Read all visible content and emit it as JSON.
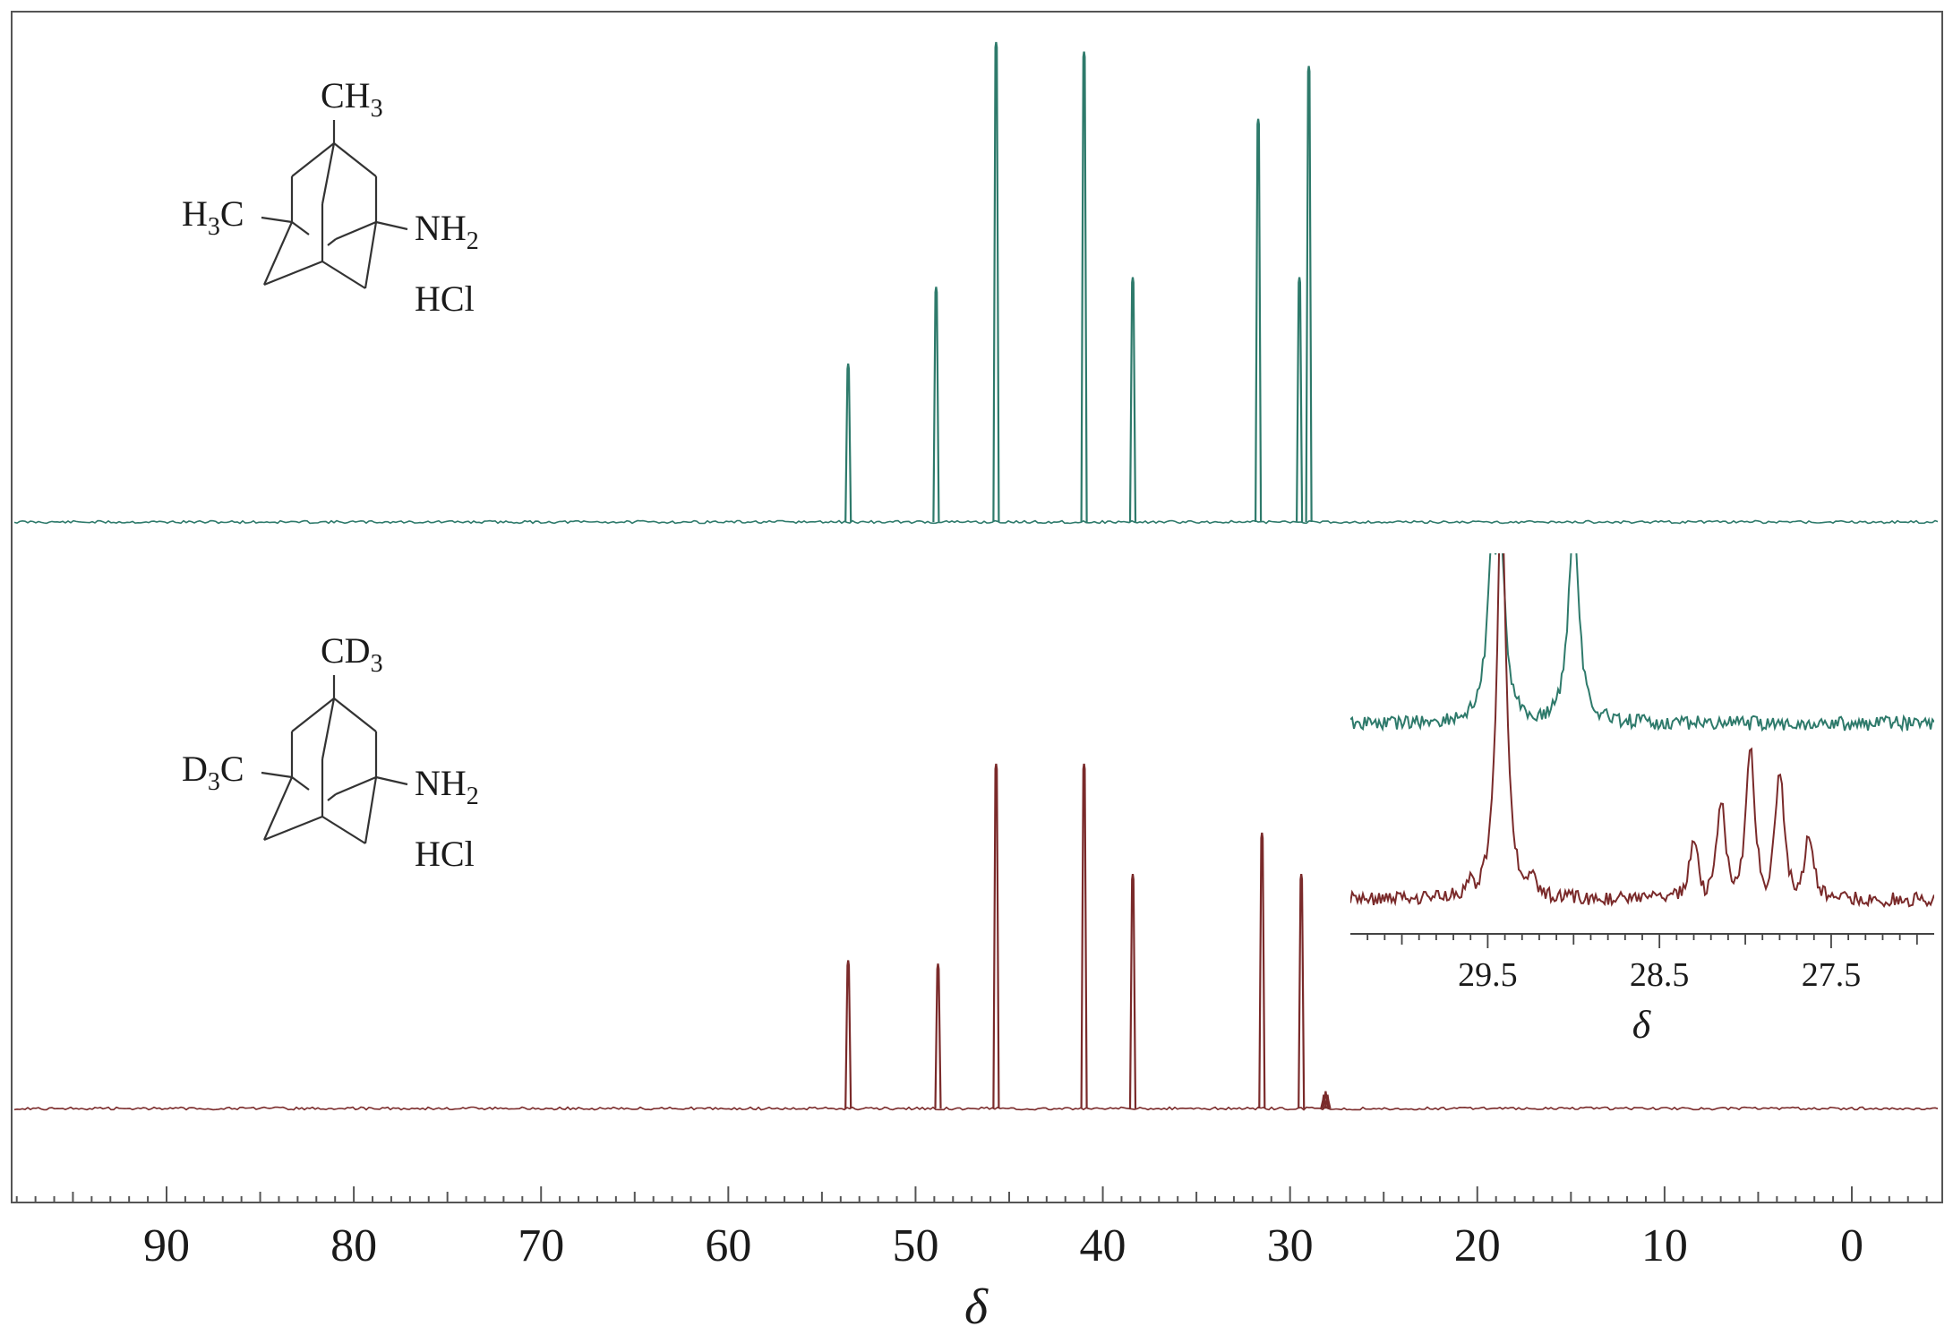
{
  "chart_data": {
    "type": "line",
    "xlabel": "δ",
    "xlim": [
      98.5,
      -5
    ],
    "x_reversed": true,
    "x_ticks": [
      "90",
      "80",
      "70",
      "60",
      "50",
      "40",
      "30",
      "20",
      "10",
      "0"
    ],
    "x_tick_values": [
      90,
      80,
      70,
      60,
      50,
      40,
      30,
      20,
      10,
      0
    ],
    "series": [
      {
        "color": "#2e7a6b",
        "peaks": [
          {
            "shift": 53.6,
            "height": 0.33
          },
          {
            "shift": 48.9,
            "height": 0.49
          },
          {
            "shift": 45.7,
            "height": 1.0
          },
          {
            "shift": 41.0,
            "height": 0.98
          },
          {
            "shift": 38.4,
            "height": 0.51
          },
          {
            "shift": 31.7,
            "height": 0.84
          },
          {
            "shift": 29.5,
            "height": 0.51
          },
          {
            "shift": 29.0,
            "height": 0.95
          }
        ]
      },
      {
        "color": "#7a2a2a",
        "peaks": [
          {
            "shift": 53.6,
            "height": 0.43
          },
          {
            "shift": 48.8,
            "height": 0.42
          },
          {
            "shift": 45.7,
            "height": 1.0
          },
          {
            "shift": 41.0,
            "height": 1.0
          },
          {
            "shift": 38.4,
            "height": 0.68
          },
          {
            "shift": 31.5,
            "height": 0.8
          },
          {
            "shift": 29.4,
            "height": 0.68
          },
          {
            "shift": 28.2,
            "height": 0.04
          },
          {
            "shift": 28.1,
            "height": 0.05
          },
          {
            "shift": 28.0,
            "height": 0.04
          }
        ]
      }
    ],
    "inset": {
      "xlabel": "δ",
      "xlim": [
        30.3,
        26.9
      ],
      "x_ticks": [
        "29.5",
        "28.5",
        "27.5"
      ],
      "x_tick_values": [
        29.5,
        28.5,
        27.5
      ],
      "series": [
        {
          "color": "#2e7a6b",
          "peaks": [
            {
              "shift": 29.47,
              "height": 1.2
            },
            {
              "shift": 29.43,
              "height": 1.2
            },
            {
              "shift": 29.0,
              "height": 1.2
            },
            {
              "shift": 29.3,
              "height": 0.12
            },
            {
              "shift": 29.1,
              "height": 0.1
            }
          ]
        },
        {
          "color": "#7a2a2a",
          "peaks": [
            {
              "shift": 29.42,
              "height": 1.2
            },
            {
              "shift": 29.25,
              "height": 0.1
            },
            {
              "shift": 29.6,
              "height": 0.08
            },
            {
              "shift": 28.3,
              "height": 0.18
            },
            {
              "shift": 28.14,
              "height": 0.3
            },
            {
              "shift": 27.97,
              "height": 0.44
            },
            {
              "shift": 27.8,
              "height": 0.38
            },
            {
              "shift": 27.63,
              "height": 0.2
            }
          ]
        }
      ]
    }
  },
  "structures": {
    "top": {
      "top_group": {
        "main": "CH",
        "sub": "3"
      },
      "left_group": {
        "main": "H",
        "sub": "3",
        "rest": "C"
      },
      "right_group": {
        "main": "NH",
        "sub": "2"
      },
      "salt": "HCl"
    },
    "bottom": {
      "top_group": {
        "main": "CD",
        "sub": "3"
      },
      "left_group": {
        "main": "D",
        "sub": "3",
        "rest": "C"
      },
      "right_group": {
        "main": "NH",
        "sub": "2"
      },
      "salt": "HCl"
    }
  }
}
